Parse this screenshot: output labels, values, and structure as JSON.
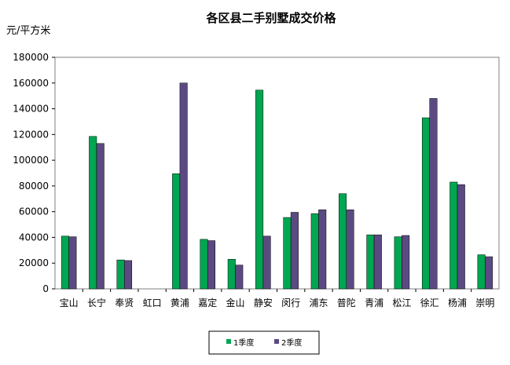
{
  "chart_data": {
    "type": "bar",
    "title": "各区县二手别墅成交价格",
    "ylabel": "元/平方米",
    "xlabel": "",
    "ylim": [
      0,
      180000
    ],
    "yticks": [
      "0",
      "20000",
      "40000",
      "60000",
      "80000",
      "100000",
      "120000",
      "140000",
      "160000",
      "180000"
    ],
    "categories": [
      "宝山",
      "长宁",
      "奉贤",
      "虹口",
      "黄浦",
      "嘉定",
      "金山",
      "静安",
      "闵行",
      "浦东",
      "普陀",
      "青浦",
      "松江",
      "徐汇",
      "杨浦",
      "崇明"
    ],
    "series": [
      {
        "name": "1季度",
        "color": "#00a651",
        "values": [
          41000,
          118500,
          22500,
          0,
          89500,
          38500,
          23000,
          154500,
          55500,
          58500,
          74000,
          42000,
          40500,
          133000,
          83000,
          26500
        ]
      },
      {
        "name": "2季度",
        "color": "#5b4a82",
        "values": [
          40500,
          113000,
          22000,
          0,
          160000,
          37500,
          18500,
          41000,
          59500,
          61500,
          61500,
          42000,
          41500,
          148000,
          81000,
          25000
        ]
      }
    ],
    "grid": false,
    "legend": "bottom"
  }
}
